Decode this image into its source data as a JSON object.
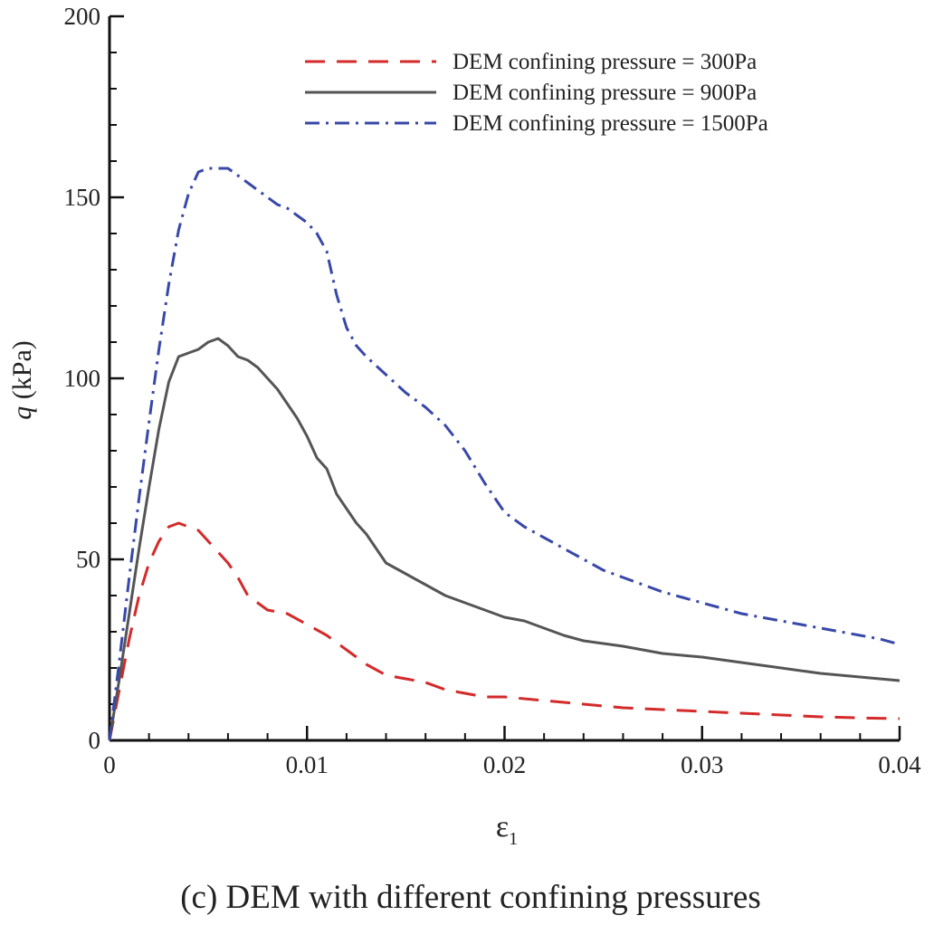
{
  "chart_data": {
    "type": "line",
    "caption": "(c) DEM with different confining pressures",
    "xlabel": "ε",
    "xlabel_sub": "1",
    "ylabel_var": "q",
    "ylabel_unit": " (kPa)",
    "xlim": [
      0,
      0.04
    ],
    "ylim": [
      0,
      200
    ],
    "x_ticks": [
      0,
      0.01,
      0.02,
      0.03,
      0.04
    ],
    "x_tick_labels": [
      "0",
      "0.01",
      "0.02",
      "0.03",
      "0.04"
    ],
    "y_ticks": [
      0,
      50,
      100,
      150,
      200
    ],
    "y_tick_labels": [
      "0",
      "50",
      "100",
      "150",
      "200"
    ],
    "grid": false,
    "legend_position": "top-right",
    "series": [
      {
        "name": "DEM confining pressure = 300Pa",
        "color": "#d42a2a",
        "dash": "dashed",
        "points": [
          [
            0,
            0
          ],
          [
            0.0005,
            14
          ],
          [
            0.001,
            28
          ],
          [
            0.0015,
            40
          ],
          [
            0.002,
            49
          ],
          [
            0.0025,
            55
          ],
          [
            0.003,
            59
          ],
          [
            0.0035,
            60
          ],
          [
            0.004,
            59
          ],
          [
            0.0045,
            58
          ],
          [
            0.005,
            55
          ],
          [
            0.0055,
            52
          ],
          [
            0.006,
            49
          ],
          [
            0.0065,
            45
          ],
          [
            0.007,
            40
          ],
          [
            0.0075,
            38
          ],
          [
            0.008,
            36
          ],
          [
            0.009,
            35
          ],
          [
            0.01,
            32
          ],
          [
            0.011,
            29
          ],
          [
            0.012,
            25
          ],
          [
            0.013,
            21
          ],
          [
            0.014,
            18
          ],
          [
            0.015,
            17
          ],
          [
            0.016,
            16
          ],
          [
            0.017,
            14
          ],
          [
            0.018,
            13
          ],
          [
            0.019,
            12
          ],
          [
            0.02,
            12
          ],
          [
            0.022,
            11
          ],
          [
            0.024,
            10
          ],
          [
            0.026,
            9
          ],
          [
            0.028,
            8.5
          ],
          [
            0.03,
            8
          ],
          [
            0.032,
            7.5
          ],
          [
            0.034,
            7
          ],
          [
            0.036,
            6.5
          ],
          [
            0.038,
            6.2
          ],
          [
            0.04,
            6
          ]
        ]
      },
      {
        "name": "DEM confining pressure = 900Pa",
        "color": "#555555",
        "dash": "solid",
        "points": [
          [
            0,
            0
          ],
          [
            0.0005,
            17
          ],
          [
            0.001,
            35
          ],
          [
            0.0015,
            53
          ],
          [
            0.002,
            70
          ],
          [
            0.0025,
            86
          ],
          [
            0.003,
            99
          ],
          [
            0.0035,
            106
          ],
          [
            0.004,
            107
          ],
          [
            0.0045,
            108
          ],
          [
            0.005,
            110
          ],
          [
            0.0055,
            111
          ],
          [
            0.006,
            109
          ],
          [
            0.0065,
            106
          ],
          [
            0.007,
            105
          ],
          [
            0.0075,
            103
          ],
          [
            0.008,
            100
          ],
          [
            0.0085,
            97
          ],
          [
            0.009,
            93
          ],
          [
            0.0095,
            89
          ],
          [
            0.01,
            84
          ],
          [
            0.0105,
            78
          ],
          [
            0.011,
            75
          ],
          [
            0.0115,
            68
          ],
          [
            0.012,
            64
          ],
          [
            0.0125,
            60
          ],
          [
            0.013,
            57
          ],
          [
            0.0135,
            53
          ],
          [
            0.014,
            49
          ],
          [
            0.015,
            46
          ],
          [
            0.016,
            43
          ],
          [
            0.017,
            40
          ],
          [
            0.018,
            38
          ],
          [
            0.019,
            36
          ],
          [
            0.02,
            34
          ],
          [
            0.021,
            33
          ],
          [
            0.022,
            31
          ],
          [
            0.023,
            29
          ],
          [
            0.024,
            27.5
          ],
          [
            0.026,
            26
          ],
          [
            0.028,
            24
          ],
          [
            0.03,
            23
          ],
          [
            0.032,
            21.5
          ],
          [
            0.034,
            20
          ],
          [
            0.036,
            18.5
          ],
          [
            0.038,
            17.5
          ],
          [
            0.04,
            16.5
          ]
        ]
      },
      {
        "name": "DEM confining pressure = 1500Pa",
        "color": "#3848a8",
        "dash": "dashdot",
        "points": [
          [
            0,
            0
          ],
          [
            0.0005,
            22
          ],
          [
            0.001,
            45
          ],
          [
            0.0015,
            67
          ],
          [
            0.002,
            88
          ],
          [
            0.0025,
            108
          ],
          [
            0.003,
            126
          ],
          [
            0.0035,
            141
          ],
          [
            0.004,
            151
          ],
          [
            0.0045,
            157
          ],
          [
            0.005,
            158
          ],
          [
            0.0055,
            158
          ],
          [
            0.006,
            158
          ],
          [
            0.0065,
            156
          ],
          [
            0.007,
            154
          ],
          [
            0.0075,
            152
          ],
          [
            0.008,
            150
          ],
          [
            0.0085,
            148
          ],
          [
            0.009,
            147
          ],
          [
            0.0095,
            145
          ],
          [
            0.01,
            143
          ],
          [
            0.0105,
            140
          ],
          [
            0.011,
            135
          ],
          [
            0.0115,
            123
          ],
          [
            0.012,
            114
          ],
          [
            0.0125,
            109
          ],
          [
            0.013,
            106
          ],
          [
            0.014,
            101
          ],
          [
            0.015,
            96
          ],
          [
            0.016,
            92
          ],
          [
            0.017,
            87
          ],
          [
            0.018,
            80
          ],
          [
            0.019,
            71
          ],
          [
            0.02,
            63
          ],
          [
            0.021,
            59
          ],
          [
            0.022,
            56
          ],
          [
            0.023,
            53
          ],
          [
            0.024,
            50
          ],
          [
            0.025,
            47
          ],
          [
            0.026,
            45
          ],
          [
            0.027,
            43
          ],
          [
            0.028,
            41
          ],
          [
            0.029,
            39.5
          ],
          [
            0.03,
            38
          ],
          [
            0.031,
            36.5
          ],
          [
            0.032,
            35
          ],
          [
            0.033,
            34
          ],
          [
            0.034,
            33
          ],
          [
            0.035,
            32
          ],
          [
            0.036,
            31
          ],
          [
            0.037,
            30
          ],
          [
            0.038,
            29
          ],
          [
            0.039,
            28
          ],
          [
            0.04,
            26.5
          ]
        ]
      }
    ]
  }
}
